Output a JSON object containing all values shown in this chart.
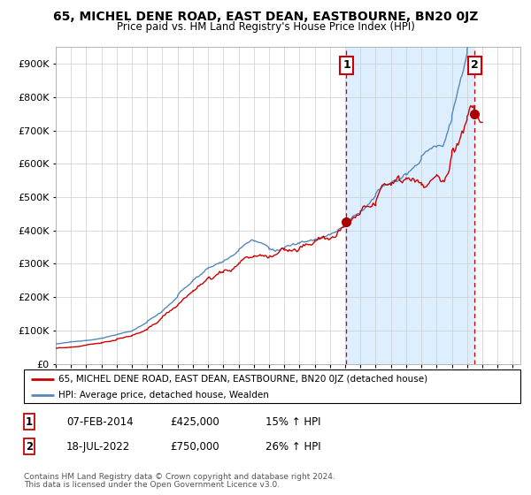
{
  "title": "65, MICHEL DENE ROAD, EAST DEAN, EASTBOURNE, BN20 0JZ",
  "subtitle": "Price paid vs. HM Land Registry's House Price Index (HPI)",
  "ylim": [
    0,
    950000
  ],
  "yticks": [
    0,
    100000,
    200000,
    300000,
    400000,
    500000,
    600000,
    700000,
    800000,
    900000
  ],
  "xlim_start": 1995.0,
  "xlim_end": 2025.5,
  "sale1_x": 2014.083,
  "sale1_y": 425000,
  "sale2_x": 2022.5,
  "sale2_y": 750000,
  "legend_label1": "65, MICHEL DENE ROAD, EAST DEAN, EASTBOURNE, BN20 0JZ (detached house)",
  "legend_label2": "HPI: Average price, detached house, Wealden",
  "footer1": "Contains HM Land Registry data © Crown copyright and database right 2024.",
  "footer2": "This data is licensed under the Open Government Licence v3.0.",
  "table_row1": [
    "1",
    "07-FEB-2014",
    "£425,000",
    "15% ↑ HPI"
  ],
  "table_row2": [
    "2",
    "18-JUL-2022",
    "£750,000",
    "26% ↑ HPI"
  ],
  "red_color": "#cc0000",
  "blue_color": "#5588bb",
  "shade_color": "#ddeeff",
  "label_box_color": "#cc0000",
  "bg_color": "#ffffff"
}
